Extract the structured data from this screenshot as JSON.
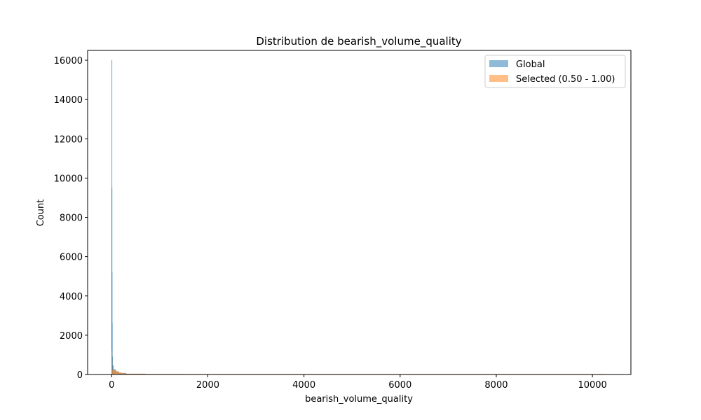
{
  "chart_data": {
    "type": "histogram",
    "title": "Distribution de bearish_volume_quality",
    "xlabel": "bearish_volume_quality",
    "ylabel": "Count",
    "xlim": [
      -500,
      10800
    ],
    "ylim": [
      0,
      16500
    ],
    "xticks": [
      0,
      2000,
      4000,
      6000,
      8000,
      10000
    ],
    "yticks": [
      0,
      2000,
      4000,
      6000,
      8000,
      10000,
      12000,
      14000,
      16000
    ],
    "grid": false,
    "legend_position": "top-right",
    "series": [
      {
        "name": "Global",
        "color": "#1f77b4",
        "opacity": 0.5,
        "bins": [
          [
            0,
            1,
            16000
          ],
          [
            1,
            3,
            9500
          ],
          [
            3,
            6,
            5200
          ],
          [
            6,
            10,
            2600
          ],
          [
            10,
            20,
            900
          ],
          [
            20,
            40,
            450
          ],
          [
            40,
            80,
            260
          ],
          [
            80,
            150,
            150
          ],
          [
            150,
            300,
            70
          ],
          [
            300,
            700,
            30
          ],
          [
            700,
            1500,
            15
          ],
          [
            1500,
            10250,
            6
          ]
        ]
      },
      {
        "name": "Selected (0.50 - 1.00)",
        "color": "#ff7f0e",
        "opacity": 0.5,
        "bins": [
          [
            0,
            1,
            1200
          ],
          [
            1,
            3,
            600
          ],
          [
            3,
            10,
            250
          ],
          [
            10,
            50,
            210
          ],
          [
            50,
            100,
            200
          ],
          [
            100,
            150,
            140
          ],
          [
            150,
            200,
            100
          ],
          [
            200,
            300,
            60
          ],
          [
            300,
            700,
            30
          ],
          [
            700,
            10250,
            18
          ]
        ]
      }
    ]
  }
}
